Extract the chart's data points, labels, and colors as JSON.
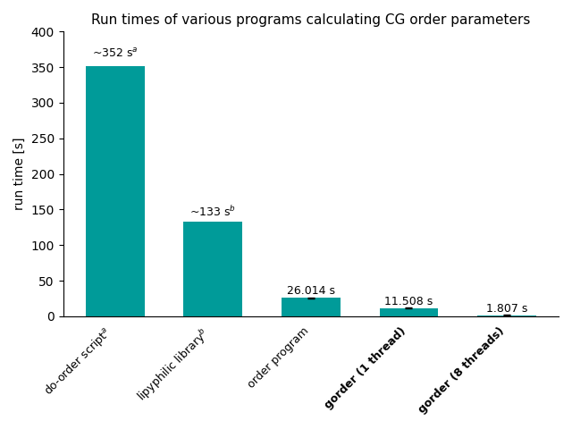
{
  "title": "Run times of various programs calculating CG order parameters",
  "ylabel": "run time [s]",
  "ylim": [
    0,
    400
  ],
  "yticks": [
    0,
    50,
    100,
    150,
    200,
    250,
    300,
    350,
    400
  ],
  "bar_color": "#009B99",
  "categories": [
    "do-order script$^a$",
    "lipyphilic library$^b$",
    "order program",
    "gorder (1 thread)",
    "gorder (8 threads)"
  ],
  "values": [
    352,
    133,
    26.014,
    11.508,
    1.807
  ],
  "labels": [
    "~352 s$^a$",
    "~133 s$^b$",
    "26.014 s",
    "11.508 s",
    "1.807 s"
  ],
  "bold_categories": [
    false,
    false,
    false,
    true,
    true
  ],
  "error_bars": [
    null,
    null,
    0.8,
    0.4,
    0.06
  ],
  "background_color": "#ffffff"
}
